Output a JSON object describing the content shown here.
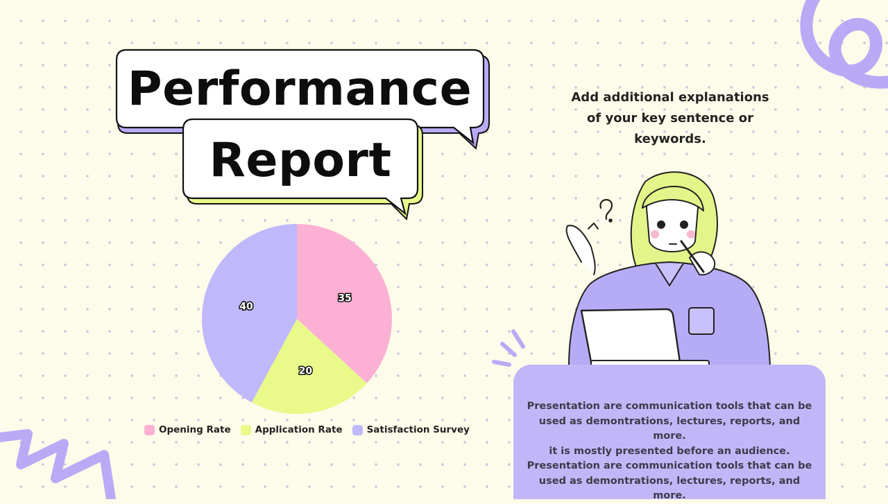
{
  "title": {
    "line1": "Performance",
    "line2": "Report"
  },
  "side_note": {
    "text": "Add additional explanations of your key sentence or keywords."
  },
  "info_card": {
    "lines": [
      "Presentation are communication tools that can be",
      "used as demontrations, lectures, reports, and more.",
      "it is mostly presented before an audience.",
      "Presentation are communication tools that can be",
      "used as demontrations, lectures, reports, and more."
    ]
  },
  "colors": {
    "pink": "#fbb0d4",
    "lime": "#e9f98a",
    "lavender": "#bfb8fb",
    "accent_purple": "#b9aaf6",
    "card": "#c1b7f8"
  },
  "illustration": {
    "icon": "woman-thinking-at-laptop-icon"
  },
  "chart_data": {
    "type": "pie",
    "categories": [
      "Opening Rate",
      "Application Rate",
      "Satisfaction Survey"
    ],
    "values": [
      35,
      20,
      40
    ],
    "colors": [
      "#fbb0d4",
      "#e9f98a",
      "#bfb8fb"
    ],
    "legend": "bottom",
    "data_labels": true
  }
}
